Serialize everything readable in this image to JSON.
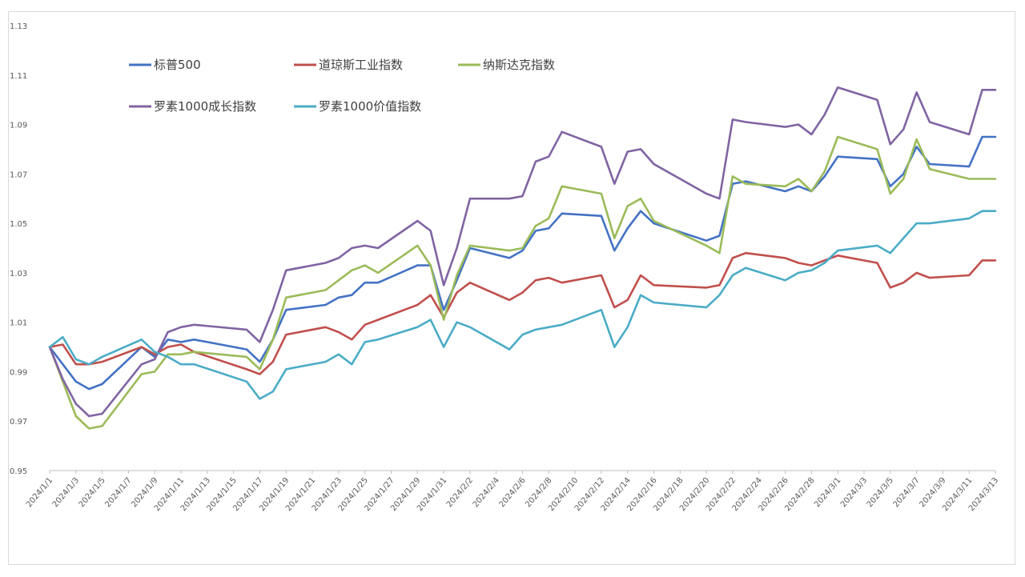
{
  "chart_data": {
    "type": "line",
    "title": "",
    "xlabel": "",
    "ylabel": "",
    "ylim": [
      0.95,
      1.13
    ],
    "yticks": [
      "0.95",
      "0.97",
      "0.99",
      "1.01",
      "1.03",
      "1.05",
      "1.07",
      "1.09",
      "1.11",
      "1.13"
    ],
    "grid": false,
    "legend_position": "top-left",
    "x_tick_labels": [
      "2024/1/1",
      "2024/1/3",
      "2024/1/5",
      "2024/1/7",
      "2024/1/9",
      "2024/1/11",
      "2024/1/13",
      "2024/1/15",
      "2024/1/17",
      "2024/1/19",
      "2024/1/21",
      "2024/1/23",
      "2024/1/25",
      "2024/1/27",
      "2024/1/29",
      "2024/1/31",
      "2024/2/2",
      "2024/2/4",
      "2024/2/6",
      "2024/2/8",
      "2024/2/10",
      "2024/2/12",
      "2024/2/14",
      "2024/2/16",
      "2024/2/18",
      "2024/2/20",
      "2024/2/22",
      "2024/2/24",
      "2024/2/26",
      "2024/2/28",
      "2024/3/1",
      "2024/3/3",
      "2024/3/5",
      "2024/3/7",
      "2024/3/9",
      "2024/3/11",
      "2024/3/13"
    ],
    "x": [
      "2024/1/1",
      "2024/1/2",
      "2024/1/3",
      "2024/1/4",
      "2024/1/5",
      "2024/1/8",
      "2024/1/9",
      "2024/1/10",
      "2024/1/11",
      "2024/1/12",
      "2024/1/16",
      "2024/1/17",
      "2024/1/18",
      "2024/1/19",
      "2024/1/22",
      "2024/1/23",
      "2024/1/24",
      "2024/1/25",
      "2024/1/26",
      "2024/1/29",
      "2024/1/30",
      "2024/1/31",
      "2024/2/1",
      "2024/2/2",
      "2024/2/5",
      "2024/2/6",
      "2024/2/7",
      "2024/2/8",
      "2024/2/9",
      "2024/2/12",
      "2024/2/13",
      "2024/2/14",
      "2024/2/15",
      "2024/2/16",
      "2024/2/20",
      "2024/2/21",
      "2024/2/22",
      "2024/2/23",
      "2024/2/26",
      "2024/2/27",
      "2024/2/28",
      "2024/2/29",
      "2024/3/1",
      "2024/3/4",
      "2024/3/5",
      "2024/3/6",
      "2024/3/7",
      "2024/3/8",
      "2024/3/11",
      "2024/3/12",
      "2024/3/13"
    ],
    "series": [
      {
        "name": "标普500",
        "color": "#4472c4",
        "values": [
          1.0,
          0.993,
          0.986,
          0.983,
          0.985,
          1.0,
          0.996,
          1.003,
          1.002,
          1.003,
          0.999,
          0.994,
          1.003,
          1.015,
          1.017,
          1.02,
          1.021,
          1.026,
          1.026,
          1.033,
          1.033,
          1.015,
          1.027,
          1.04,
          1.036,
          1.039,
          1.047,
          1.048,
          1.054,
          1.053,
          1.039,
          1.048,
          1.055,
          1.05,
          1.043,
          1.045,
          1.066,
          1.067,
          1.063,
          1.065,
          1.063,
          1.069,
          1.077,
          1.076,
          1.065,
          1.07,
          1.081,
          1.074,
          1.073,
          1.085,
          1.085
        ]
      },
      {
        "name": "道琼斯工业指数",
        "color": "#c0504d",
        "values": [
          1.0,
          1.001,
          0.993,
          0.993,
          0.994,
          1.0,
          0.997,
          1.0,
          1.001,
          0.998,
          0.991,
          0.989,
          0.994,
          1.005,
          1.008,
          1.006,
          1.003,
          1.009,
          1.011,
          1.017,
          1.021,
          1.012,
          1.022,
          1.026,
          1.019,
          1.022,
          1.027,
          1.028,
          1.026,
          1.029,
          1.016,
          1.019,
          1.029,
          1.025,
          1.024,
          1.025,
          1.036,
          1.038,
          1.036,
          1.034,
          1.033,
          1.035,
          1.037,
          1.034,
          1.024,
          1.026,
          1.03,
          1.028,
          1.029,
          1.035,
          1.035
        ]
      },
      {
        "name": "纳斯达克指数",
        "color": "#9bbb59",
        "values": [
          1.0,
          0.986,
          0.972,
          0.967,
          0.968,
          0.989,
          0.99,
          0.997,
          0.997,
          0.998,
          0.996,
          0.991,
          1.003,
          1.02,
          1.023,
          1.027,
          1.031,
          1.033,
          1.03,
          1.041,
          1.033,
          1.011,
          1.029,
          1.041,
          1.039,
          1.04,
          1.049,
          1.052,
          1.065,
          1.062,
          1.044,
          1.057,
          1.06,
          1.051,
          1.041,
          1.038,
          1.069,
          1.066,
          1.065,
          1.068,
          1.063,
          1.071,
          1.085,
          1.08,
          1.062,
          1.068,
          1.084,
          1.072,
          1.068,
          1.068,
          1.068
        ]
      },
      {
        "name": "罗素1000成长指数",
        "color": "#8064a2",
        "values": [
          1.0,
          0.987,
          0.977,
          0.972,
          0.973,
          0.993,
          0.995,
          1.006,
          1.008,
          1.009,
          1.007,
          1.002,
          1.015,
          1.031,
          1.034,
          1.036,
          1.04,
          1.041,
          1.04,
          1.051,
          1.047,
          1.025,
          1.04,
          1.06,
          1.06,
          1.061,
          1.075,
          1.077,
          1.087,
          1.081,
          1.066,
          1.079,
          1.08,
          1.074,
          1.062,
          1.06,
          1.092,
          1.091,
          1.089,
          1.09,
          1.086,
          1.094,
          1.105,
          1.1,
          1.082,
          1.088,
          1.103,
          1.091,
          1.086,
          1.104,
          1.104
        ]
      },
      {
        "name": "罗素1000价值指数",
        "color": "#4bacc6",
        "values": [
          1.0,
          1.004,
          0.995,
          0.993,
          0.996,
          1.003,
          0.998,
          0.996,
          0.993,
          0.993,
          0.986,
          0.979,
          0.982,
          0.991,
          0.994,
          0.997,
          0.993,
          1.002,
          1.003,
          1.008,
          1.011,
          1.0,
          1.01,
          1.008,
          0.999,
          1.005,
          1.007,
          1.008,
          1.009,
          1.015,
          1.0,
          1.008,
          1.021,
          1.018,
          1.016,
          1.021,
          1.029,
          1.032,
          1.027,
          1.03,
          1.031,
          1.034,
          1.039,
          1.041,
          1.038,
          1.044,
          1.05,
          1.05,
          1.052,
          1.055,
          1.055
        ]
      }
    ]
  }
}
